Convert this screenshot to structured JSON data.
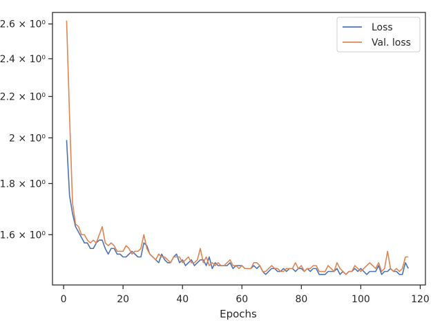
{
  "chart_data": {
    "type": "line",
    "title": "",
    "xlabel": "Epochs",
    "ylabel": "",
    "xlim": [
      -3.75,
      121.75
    ],
    "ylim": [
      1.425,
      2.67
    ],
    "yscale": "log",
    "grid": false,
    "legend_position": "top-right",
    "x_ticks": [
      0,
      20,
      40,
      60,
      80,
      100,
      120
    ],
    "x_tick_labels": [
      "0",
      "20",
      "40",
      "60",
      "80",
      "100",
      "120"
    ],
    "y_ticks": [
      1.6,
      1.8,
      2.0,
      2.2,
      2.4,
      2.6
    ],
    "y_tick_labels": [
      "1.6 × 10⁰",
      "1.8 × 10⁰",
      "2 × 10⁰",
      "2.2 × 10⁰",
      "2.4 × 10⁰",
      "2.6 × 10⁰"
    ],
    "x": [
      1,
      2,
      3,
      4,
      5,
      6,
      7,
      8,
      9,
      10,
      11,
      12,
      13,
      14,
      15,
      16,
      17,
      18,
      19,
      20,
      21,
      22,
      23,
      24,
      25,
      26,
      27,
      28,
      29,
      30,
      31,
      32,
      33,
      34,
      35,
      36,
      37,
      38,
      39,
      40,
      41,
      42,
      43,
      44,
      45,
      46,
      47,
      48,
      49,
      50,
      51,
      52,
      53,
      54,
      55,
      56,
      57,
      58,
      59,
      60,
      61,
      62,
      63,
      64,
      65,
      66,
      67,
      68,
      69,
      70,
      71,
      72,
      73,
      74,
      75,
      76,
      77,
      78,
      79,
      80,
      81,
      82,
      83,
      84,
      85,
      86,
      87,
      88,
      89,
      90,
      91,
      92,
      93,
      94,
      95,
      96,
      97,
      98,
      99,
      100,
      101,
      102,
      103,
      104,
      105,
      106,
      107,
      108,
      109,
      110,
      111,
      112,
      113,
      114,
      115,
      116
    ],
    "series": [
      {
        "name": "Loss",
        "color": "#4c72b0",
        "values": [
          1.99,
          1.75,
          1.68,
          1.63,
          1.61,
          1.59,
          1.57,
          1.57,
          1.55,
          1.55,
          1.57,
          1.58,
          1.58,
          1.55,
          1.53,
          1.55,
          1.55,
          1.53,
          1.53,
          1.52,
          1.52,
          1.53,
          1.54,
          1.53,
          1.52,
          1.52,
          1.57,
          1.56,
          1.53,
          1.52,
          1.51,
          1.5,
          1.53,
          1.51,
          1.5,
          1.5,
          1.52,
          1.53,
          1.5,
          1.51,
          1.49,
          1.5,
          1.51,
          1.49,
          1.5,
          1.51,
          1.51,
          1.49,
          1.52,
          1.48,
          1.5,
          1.49,
          1.49,
          1.49,
          1.49,
          1.5,
          1.48,
          1.49,
          1.49,
          1.49,
          1.48,
          1.48,
          1.48,
          1.49,
          1.48,
          1.49,
          1.47,
          1.46,
          1.47,
          1.48,
          1.48,
          1.47,
          1.47,
          1.48,
          1.47,
          1.48,
          1.48,
          1.47,
          1.48,
          1.48,
          1.47,
          1.48,
          1.47,
          1.48,
          1.48,
          1.46,
          1.46,
          1.46,
          1.47,
          1.47,
          1.47,
          1.48,
          1.46,
          1.47,
          1.46,
          1.47,
          1.47,
          1.48,
          1.47,
          1.48,
          1.47,
          1.46,
          1.47,
          1.47,
          1.47,
          1.49,
          1.46,
          1.47,
          1.47,
          1.48,
          1.47,
          1.47,
          1.46,
          1.46,
          1.5,
          1.48
        ]
      },
      {
        "name": "Val. loss",
        "color": "#dd8452",
        "values": [
          2.62,
          2.1,
          1.72,
          1.64,
          1.63,
          1.6,
          1.6,
          1.58,
          1.57,
          1.58,
          1.57,
          1.6,
          1.63,
          1.57,
          1.56,
          1.57,
          1.56,
          1.54,
          1.54,
          1.54,
          1.56,
          1.55,
          1.53,
          1.54,
          1.54,
          1.55,
          1.6,
          1.55,
          1.53,
          1.52,
          1.51,
          1.53,
          1.52,
          1.52,
          1.51,
          1.5,
          1.52,
          1.52,
          1.52,
          1.5,
          1.51,
          1.52,
          1.5,
          1.5,
          1.51,
          1.55,
          1.5,
          1.52,
          1.49,
          1.5,
          1.49,
          1.5,
          1.49,
          1.49,
          1.5,
          1.51,
          1.49,
          1.49,
          1.48,
          1.49,
          1.48,
          1.48,
          1.48,
          1.5,
          1.5,
          1.49,
          1.47,
          1.47,
          1.48,
          1.49,
          1.48,
          1.48,
          1.47,
          1.47,
          1.48,
          1.48,
          1.48,
          1.5,
          1.48,
          1.49,
          1.47,
          1.48,
          1.48,
          1.49,
          1.49,
          1.47,
          1.47,
          1.47,
          1.49,
          1.48,
          1.47,
          1.5,
          1.48,
          1.47,
          1.46,
          1.47,
          1.47,
          1.49,
          1.48,
          1.47,
          1.48,
          1.49,
          1.5,
          1.49,
          1.48,
          1.5,
          1.47,
          1.48,
          1.54,
          1.48,
          1.47,
          1.48,
          1.47,
          1.48,
          1.52,
          1.52
        ]
      }
    ]
  }
}
